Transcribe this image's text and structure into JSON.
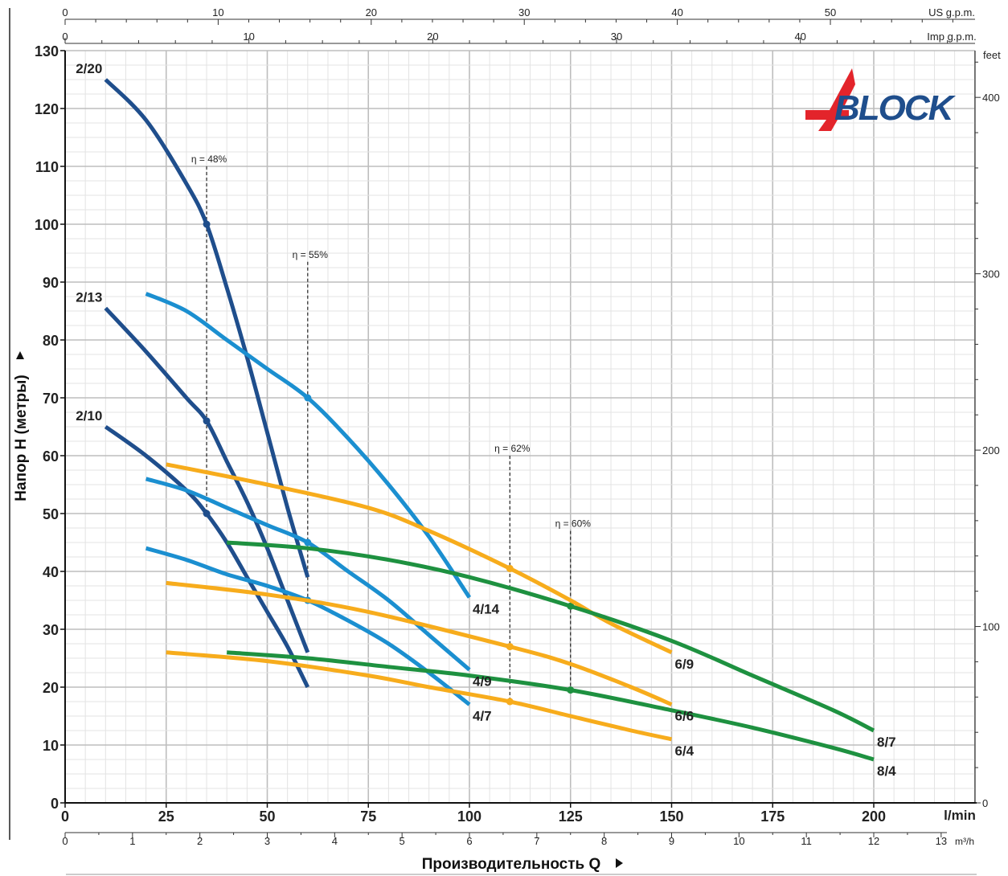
{
  "chart_data": {
    "type": "line",
    "title": "",
    "ylabel": "Напор H (метры)",
    "xlabel": "Производительность Q",
    "ylim": [
      0,
      130
    ],
    "xlim": [
      0,
      225
    ],
    "x_unit": "l/min",
    "y_ticks": [
      0,
      10,
      20,
      30,
      40,
      50,
      60,
      70,
      80,
      90,
      100,
      110,
      120,
      130
    ],
    "x_ticks": [
      0,
      25,
      50,
      75,
      100,
      125,
      150,
      175,
      200
    ],
    "secondary_axes": {
      "m3h": {
        "unit": "m³/h",
        "ticks": [
          0,
          1,
          2,
          3,
          4,
          5,
          6,
          7,
          8,
          9,
          10,
          11,
          12,
          13
        ]
      },
      "us_gpm": {
        "unit": "US g.p.m.",
        "ticks": [
          0,
          10,
          20,
          30,
          40,
          50
        ]
      },
      "imp_gpm": {
        "unit": "Imp g.p.m.",
        "ticks": [
          0,
          10,
          20,
          30,
          40
        ]
      },
      "feet": {
        "unit": "feet",
        "ticks": [
          0,
          100,
          200,
          300,
          400
        ]
      }
    },
    "grid": true,
    "logo_text": "4BLOCK",
    "colors": {
      "series2": "#1f4e8c",
      "series4": "#1b8fd0",
      "series6": "#f7ac1c",
      "series8": "#1e9140",
      "grid": "#cfcfcf",
      "logo_red": "#e3242b",
      "logo_blue": "#1f4e8c"
    },
    "series": [
      {
        "name": "2/20",
        "group": "2",
        "x": [
          10,
          20,
          30,
          35,
          40,
          45,
          50,
          55,
          60
        ],
        "y": [
          125,
          118,
          107,
          100,
          89,
          77,
          64,
          51,
          39
        ]
      },
      {
        "name": "2/13",
        "group": "2",
        "x": [
          10,
          20,
          30,
          35,
          40,
          45,
          50,
          55,
          60
        ],
        "y": [
          85.5,
          78,
          70,
          66,
          59,
          52,
          44,
          35,
          26
        ]
      },
      {
        "name": "2/10",
        "group": "2",
        "x": [
          10,
          20,
          30,
          35,
          40,
          45,
          50,
          55,
          60
        ],
        "y": [
          65,
          60,
          54,
          50,
          45,
          39,
          33,
          27,
          20
        ]
      },
      {
        "name": "4/14",
        "group": "4",
        "x": [
          20,
          30,
          40,
          50,
          60,
          70,
          80,
          90,
          100
        ],
        "y": [
          88,
          85,
          80,
          75,
          70,
          63,
          55,
          46,
          35.5
        ]
      },
      {
        "name": "4/9",
        "group": "4",
        "x": [
          20,
          30,
          40,
          50,
          60,
          70,
          80,
          90,
          100
        ],
        "y": [
          56,
          54,
          51,
          48,
          45,
          40,
          35,
          29,
          23
        ]
      },
      {
        "name": "4/7",
        "group": "4",
        "x": [
          20,
          30,
          40,
          50,
          60,
          70,
          80,
          90,
          100
        ],
        "y": [
          44,
          42,
          39.5,
          37.5,
          35,
          31.5,
          27.5,
          22.5,
          17
        ]
      },
      {
        "name": "6/9",
        "group": "6",
        "x": [
          25,
          50,
          75,
          90,
          110,
          125,
          135,
          150
        ],
        "y": [
          58.5,
          55,
          51,
          47,
          40.5,
          35,
          31,
          26
        ]
      },
      {
        "name": "6/6",
        "group": "6",
        "x": [
          25,
          50,
          75,
          110,
          125,
          140,
          150
        ],
        "y": [
          38,
          36,
          33,
          27,
          24,
          20,
          17
        ]
      },
      {
        "name": "6/4",
        "group": "6",
        "x": [
          25,
          50,
          75,
          90,
          110,
          125,
          140,
          150
        ],
        "y": [
          26,
          24.5,
          22,
          20,
          17.5,
          15,
          12.5,
          11
        ]
      },
      {
        "name": "8/7",
        "group": "8",
        "x": [
          40,
          60,
          80,
          100,
          125,
          150,
          170,
          190,
          200
        ],
        "y": [
          45,
          44,
          42,
          39,
          34,
          28,
          22,
          16,
          12.5
        ]
      },
      {
        "name": "8/4",
        "group": "8",
        "x": [
          40,
          60,
          80,
          100,
          125,
          150,
          170,
          190,
          200
        ],
        "y": [
          26,
          25,
          23.5,
          22,
          19.5,
          16,
          13,
          9.5,
          7.5
        ]
      }
    ],
    "series_label_pos": {
      "2/20": "start",
      "2/13": "start",
      "2/10": "start",
      "4/14": "end",
      "4/9": "end",
      "4/7": "end",
      "6/9": "end",
      "6/6": "end",
      "6/4": "end",
      "8/7": "end",
      "8/4": "end"
    },
    "efficiency_lines": [
      {
        "label": "η = 48%",
        "x": 35,
        "y_top": 110,
        "points": [
          {
            "series": "2/20",
            "y": 100
          },
          {
            "series": "2/13",
            "y": 66
          },
          {
            "series": "2/10",
            "y": 50
          }
        ]
      },
      {
        "label": "η = 55%",
        "x": 60,
        "y_top": 93.5,
        "points": [
          {
            "series": "4/14",
            "y": 70
          },
          {
            "series": "4/9",
            "y": 45
          },
          {
            "series": "4/7",
            "y": 35
          }
        ]
      },
      {
        "label": "η = 62%",
        "x": 110,
        "y_top": 60,
        "points": [
          {
            "series": "6/9",
            "y": 40.5
          },
          {
            "series": "6/6",
            "y": 27
          },
          {
            "series": "6/4",
            "y": 17.5
          }
        ]
      },
      {
        "label": "η = 60%",
        "x": 125,
        "y_top": 47,
        "points": [
          {
            "series": "8/7",
            "y": 34
          },
          {
            "series": "8/4",
            "y": 19.5
          }
        ]
      }
    ]
  }
}
